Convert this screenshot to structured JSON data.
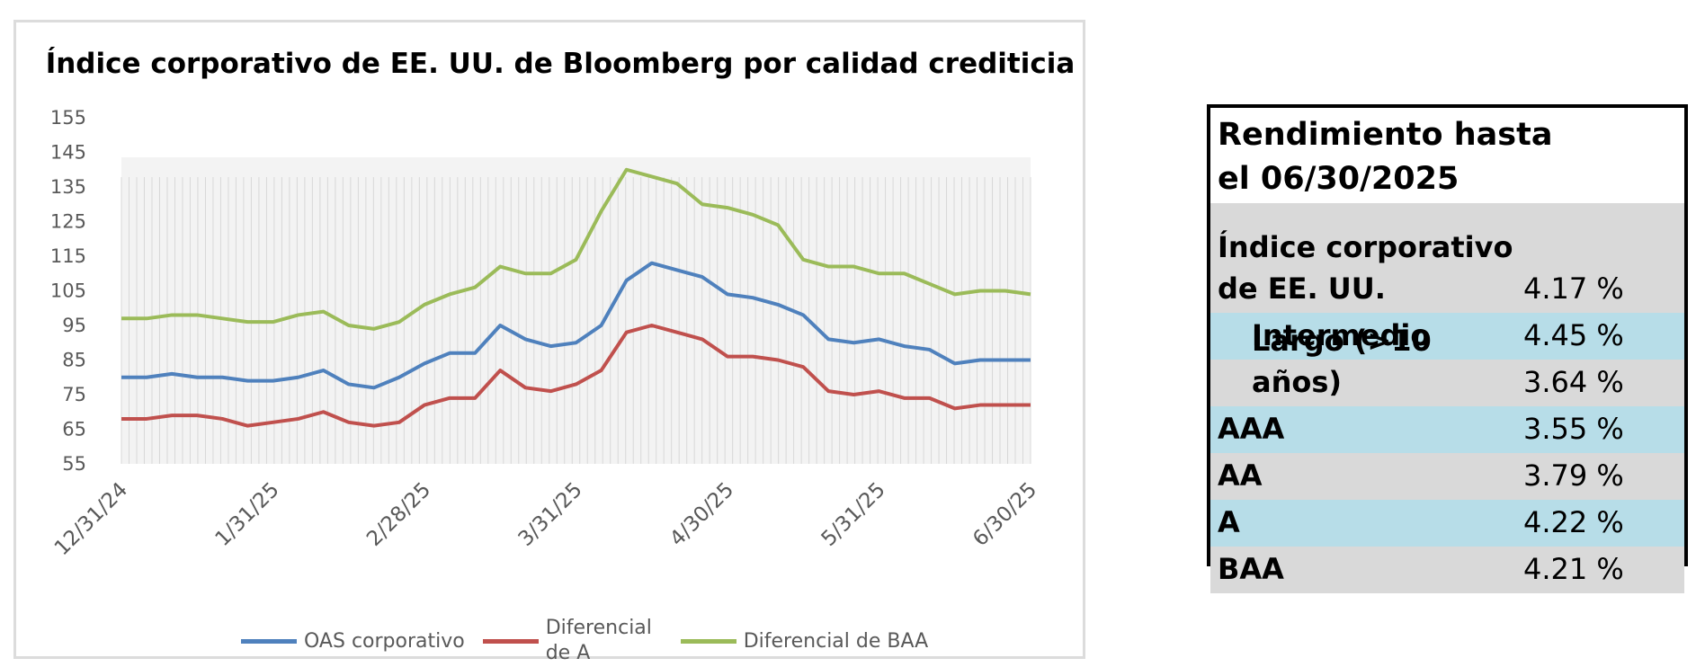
{
  "chart_data": {
    "type": "line",
    "title": "Índice corporativo de EE. UU. de Bloomberg por calidad crediticia",
    "categories": [
      "12/31/24",
      null,
      null,
      null,
      null,
      null,
      "1/31/25",
      null,
      null,
      null,
      null,
      null,
      "2/28/25",
      null,
      null,
      null,
      null,
      null,
      "3/31/25",
      null,
      null,
      null,
      null,
      null,
      "4/30/25",
      null,
      null,
      null,
      null,
      null,
      "5/31/25",
      null,
      null,
      null,
      null,
      null,
      "6/30/25"
    ],
    "series": [
      {
        "name": "OAS corporativo",
        "color": "#4f81bd",
        "values": [
          80,
          80,
          81,
          80,
          80,
          79,
          79,
          80,
          82,
          78,
          77,
          80,
          84,
          87,
          87,
          95,
          91,
          89,
          90,
          95,
          108,
          113,
          111,
          109,
          104,
          103,
          101,
          98,
          91,
          90,
          91,
          89,
          88,
          84,
          85,
          85,
          85
        ]
      },
      {
        "name": "Diferencial de A",
        "color": "#c0504d",
        "values": [
          68,
          68,
          69,
          69,
          68,
          66,
          67,
          68,
          70,
          67,
          66,
          67,
          72,
          74,
          74,
          82,
          77,
          76,
          78,
          82,
          93,
          95,
          93,
          91,
          86,
          86,
          85,
          83,
          76,
          75,
          76,
          74,
          74,
          71,
          72,
          72,
          72
        ]
      },
      {
        "name": "Diferencial de BAA",
        "color": "#9bbb59",
        "values": [
          97,
          97,
          98,
          98,
          97,
          96,
          96,
          98,
          99,
          95,
          94,
          96,
          101,
          104,
          106,
          112,
          110,
          110,
          114,
          128,
          140,
          138,
          136,
          130,
          129,
          127,
          124,
          114,
          112,
          112,
          110,
          110,
          107,
          104,
          105,
          105,
          104
        ]
      }
    ],
    "ylim": [
      55,
      155
    ],
    "yticks": [
      55,
      65,
      75,
      85,
      95,
      105,
      115,
      125,
      135,
      145,
      155
    ]
  },
  "table": {
    "title": "Rendimiento hasta el 06/30/2025",
    "rows": [
      {
        "label": "Índice corporativo de EE. UU.",
        "value": "4.17 %"
      },
      {
        "label": "Intermedio",
        "value": "4.45 %"
      },
      {
        "label": "Largo (>10 años)",
        "value": "3.64 %"
      },
      {
        "label": "AAA",
        "value": "3.55 %"
      },
      {
        "label": "AA",
        "value": "3.79 %"
      },
      {
        "label": "A",
        "value": "4.22 %"
      },
      {
        "label": "BAA",
        "value": "4.21 %"
      }
    ]
  }
}
